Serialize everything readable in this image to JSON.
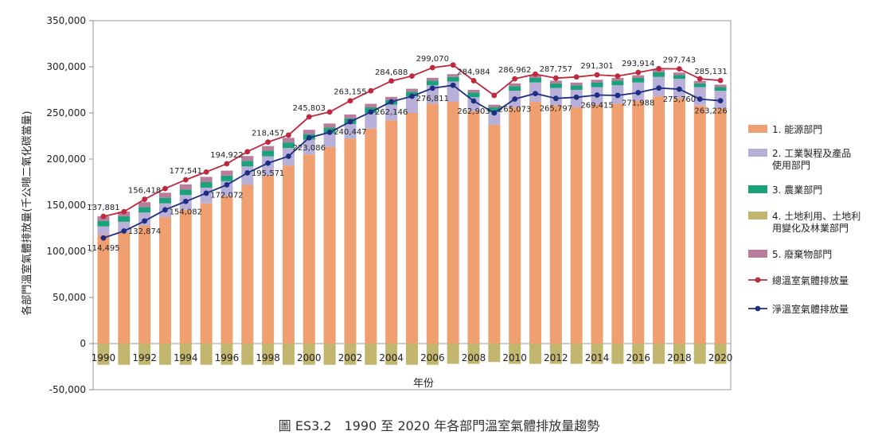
{
  "caption": "圖 ES3.2　1990 至 2020 年各部門溫室氣體排放量趨勢",
  "chart_data": {
    "type": "bar",
    "xlabel": "年份",
    "ylabel": "各部門溫室氣體排放量(千公噸二氧化碳當量)",
    "ylim": [
      -50000,
      350000
    ],
    "y_ticks": [
      -50000,
      0,
      50000,
      100000,
      150000,
      200000,
      250000,
      300000,
      350000
    ],
    "y_tick_labels": [
      "-50,000",
      "0",
      "50,000",
      "100,000",
      "150,000",
      "200,000",
      "250,000",
      "300,000",
      "350,000"
    ],
    "grid": false,
    "legend_position": "right",
    "categories": [
      "1990",
      "1991",
      "1992",
      "1993",
      "1994",
      "1995",
      "1996",
      "1997",
      "1998",
      "1999",
      "2000",
      "2001",
      "2002",
      "2003",
      "2004",
      "2005",
      "2006",
      "2007",
      "2008",
      "2009",
      "2010",
      "2011",
      "2012",
      "2013",
      "2014",
      "2015",
      "2016",
      "2017",
      "2018",
      "2019",
      "2020"
    ],
    "x_tick_labels": [
      "1990",
      "",
      "1992",
      "",
      "1994",
      "",
      "1996",
      "",
      "1998",
      "",
      "2000",
      "",
      "2002",
      "",
      "2004",
      "",
      "2006",
      "",
      "2008",
      "",
      "2010",
      "",
      "2012",
      "",
      "2014",
      "",
      "2016",
      "",
      "2018",
      "",
      "2020"
    ],
    "bar_series": [
      {
        "name": "1. 能源部門",
        "color": "#F0A070",
        "values": [
          118000,
          121000,
          128000,
          137000,
          145000,
          152000,
          160000,
          172000,
          182000,
          193000,
          205000,
          213000,
          222000,
          233000,
          242000,
          250000,
          260000,
          262000,
          252000,
          237000,
          256000,
          262000,
          258000,
          256000,
          259000,
          260000,
          263000,
          268000,
          266000,
          258000,
          255000
        ]
      },
      {
        "name": "2. 工業製程及產品使用部門",
        "color": "#B8B0D8",
        "values": [
          9000,
          11000,
          14000,
          15000,
          16000,
          17000,
          16000,
          20000,
          21000,
          19000,
          16000,
          15000,
          16000,
          17000,
          17000,
          18000,
          20000,
          22000,
          15000,
          14000,
          18000,
          21000,
          19000,
          19000,
          19000,
          20000,
          20000,
          21000,
          21000,
          20000,
          19000
        ]
      },
      {
        "name": "3. 農業部門",
        "color": "#1BA27A",
        "values": [
          6000,
          6000,
          6000,
          6000,
          6000,
          6000,
          6000,
          6000,
          6000,
          6000,
          6000,
          6000,
          6000,
          6000,
          5000,
          5000,
          5000,
          5000,
          5000,
          5000,
          5000,
          5000,
          5000,
          5000,
          5000,
          5000,
          5000,
          5000,
          4000,
          4000,
          4000
        ]
      },
      {
        "name": "4. 土地利用、土地利用變化及林業部門",
        "color": "#C2B66E",
        "values": [
          -23000,
          -23000,
          -23000,
          -23000,
          -23000,
          -23000,
          -23000,
          -23000,
          -23000,
          -23000,
          -23000,
          -23000,
          -23000,
          -23000,
          -23000,
          -23000,
          -23000,
          -22000,
          -22000,
          -20000,
          -22000,
          -22000,
          -22000,
          -22000,
          -22000,
          -22000,
          -22000,
          -22000,
          -22000,
          -22000,
          -22000
        ]
      },
      {
        "name": "5. 廢棄物部門",
        "color": "#B77D9A",
        "values": [
          4900,
          5000,
          5300,
          5500,
          5600,
          5700,
          5500,
          5300,
          5100,
          5000,
          4700,
          4500,
          4300,
          3900,
          3400,
          3200,
          3100,
          3100,
          3000,
          2900,
          3100,
          3100,
          3000,
          2900,
          2900,
          2900,
          2800,
          2800,
          2800,
          2700,
          2700
        ]
      }
    ],
    "line_series": [
      {
        "name": "總溫室氣體排放量",
        "color": "#C0283C",
        "values": [
          137881,
          143000,
          156418,
          168000,
          177541,
          186000,
          194922,
          208000,
          218457,
          226000,
          245803,
          251000,
          263155,
          274000,
          284688,
          290000,
          299070,
          302000,
          284984,
          269000,
          286962,
          292000,
          287757,
          289000,
          291301,
          290000,
          293914,
          298000,
          297743,
          287000,
          285131
        ],
        "labels": [
          "137,881",
          "",
          "156,418",
          "",
          "177,541",
          "",
          "194,922",
          "",
          "218,457",
          "",
          "245,803",
          "",
          "263,155",
          "",
          "284,688",
          "",
          "299,070",
          "",
          "284,984",
          "",
          "286,962",
          "",
          "287,757",
          "",
          "291,301",
          "",
          "293,914",
          "",
          "297,743",
          "",
          "285,131"
        ]
      },
      {
        "name": "淨溫室氣體排放量",
        "color": "#1E2F82",
        "values": [
          114495,
          122000,
          132874,
          145000,
          154082,
          163000,
          172072,
          185000,
          195571,
          203000,
          223086,
          229000,
          240447,
          251000,
          262146,
          268000,
          276811,
          280000,
          262903,
          250000,
          265073,
          271000,
          265797,
          267000,
          269415,
          269000,
          271988,
          277000,
          275760,
          265000,
          263226
        ],
        "labels": [
          "114,495",
          "",
          "132,874",
          "",
          "154,082",
          "",
          "172,072",
          "",
          "195,571",
          "",
          "223,086",
          "",
          "240,447",
          "",
          "262,146",
          "",
          "276,811",
          "",
          "262,903",
          "",
          "265,073",
          "",
          "265,797",
          "",
          "269,415",
          "",
          "271,988",
          "",
          "275,760",
          "",
          "263,226"
        ]
      }
    ]
  }
}
